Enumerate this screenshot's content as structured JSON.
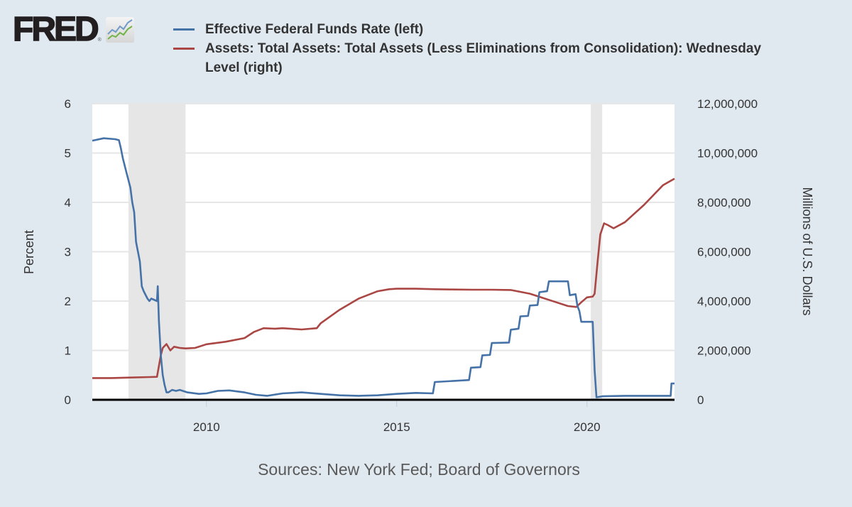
{
  "branding": {
    "logo_text": "FRED",
    "logo_registered": "®",
    "logo_icon": "line-chart-icon"
  },
  "source_note": "Sources: New York Fed; Board of Governors",
  "chart_data": {
    "type": "line",
    "title": "",
    "legend_position": "top",
    "grid": true,
    "xlabel": "",
    "x_range": [
      2007.0,
      2022.3
    ],
    "x_ticks": [
      2010,
      2015,
      2020
    ],
    "x_tick_labels": [
      "2010",
      "2015",
      "2020"
    ],
    "left_axis": {
      "label": "Percent",
      "range": [
        0,
        6
      ],
      "ticks": [
        0,
        1,
        2,
        3,
        4,
        5,
        6
      ],
      "tick_labels": [
        "0",
        "1",
        "2",
        "3",
        "4",
        "5",
        "6"
      ]
    },
    "right_axis": {
      "label": "Millions of U.S. Dollars",
      "range": [
        0,
        12000000
      ],
      "ticks": [
        0,
        2000000,
        4000000,
        6000000,
        8000000,
        10000000,
        12000000
      ],
      "tick_labels": [
        "0",
        "2,000,000",
        "4,000,000",
        "6,000,000",
        "8,000,000",
        "10,000,000",
        "12,000,000"
      ]
    },
    "recessions": [
      {
        "start": 2007.95,
        "end": 2009.45
      },
      {
        "start": 2020.1,
        "end": 2020.4
      }
    ],
    "series": [
      {
        "name": "Effective Federal Funds Rate (left)",
        "axis": "left",
        "color": "#4572a7",
        "x": [
          2007.0,
          2007.3,
          2007.6,
          2007.7,
          2007.75,
          2007.8,
          2007.9,
          2008.0,
          2008.05,
          2008.1,
          2008.15,
          2008.2,
          2008.25,
          2008.3,
          2008.35,
          2008.45,
          2008.5,
          2008.55,
          2008.7,
          2008.72,
          2008.75,
          2008.8,
          2008.85,
          2008.9,
          2008.95,
          2009.0,
          2009.1,
          2009.2,
          2009.3,
          2009.5,
          2009.8,
          2010.0,
          2010.3,
          2010.6,
          2011.0,
          2011.3,
          2011.6,
          2012.0,
          2012.5,
          2013.0,
          2013.5,
          2014.0,
          2014.5,
          2015.0,
          2015.5,
          2015.95,
          2016.0,
          2016.9,
          2016.95,
          2017.2,
          2017.25,
          2017.45,
          2017.5,
          2017.95,
          2018.0,
          2018.2,
          2018.25,
          2018.45,
          2018.5,
          2018.7,
          2018.75,
          2018.95,
          2019.0,
          2019.3,
          2019.5,
          2019.55,
          2019.7,
          2019.75,
          2019.8,
          2019.85,
          2020.15,
          2020.2,
          2020.25,
          2020.4,
          2021.0,
          2021.5,
          2022.0,
          2022.2,
          2022.22,
          2022.3
        ],
        "values": [
          5.25,
          5.3,
          5.28,
          5.26,
          5.1,
          4.9,
          4.6,
          4.3,
          4.0,
          3.8,
          3.2,
          3.0,
          2.8,
          2.3,
          2.2,
          2.05,
          2.0,
          2.05,
          2.0,
          2.3,
          1.6,
          0.9,
          0.5,
          0.3,
          0.15,
          0.15,
          0.2,
          0.18,
          0.2,
          0.15,
          0.12,
          0.13,
          0.18,
          0.19,
          0.15,
          0.1,
          0.08,
          0.13,
          0.15,
          0.12,
          0.09,
          0.08,
          0.09,
          0.12,
          0.14,
          0.13,
          0.36,
          0.4,
          0.65,
          0.66,
          0.9,
          0.91,
          1.15,
          1.16,
          1.42,
          1.44,
          1.69,
          1.7,
          1.91,
          1.92,
          2.18,
          2.2,
          2.4,
          2.4,
          2.4,
          2.12,
          2.14,
          1.9,
          1.8,
          1.58,
          1.58,
          0.6,
          0.05,
          0.07,
          0.08,
          0.08,
          0.08,
          0.08,
          0.33,
          0.33
        ]
      },
      {
        "name": "Assets: Total Assets: Total Assets (Less Eliminations from Consolidation): Wednesday Level (right)",
        "axis": "right",
        "color": "#aa4643",
        "x": [
          2007.0,
          2007.5,
          2008.0,
          2008.5,
          2008.7,
          2008.8,
          2008.85,
          2008.95,
          2009.05,
          2009.15,
          2009.3,
          2009.45,
          2009.7,
          2010.0,
          2010.5,
          2011.0,
          2011.25,
          2011.5,
          2011.8,
          2012.0,
          2012.5,
          2012.9,
          2013.0,
          2013.5,
          2014.0,
          2014.5,
          2014.8,
          2015.0,
          2015.5,
          2016.0,
          2016.5,
          2017.0,
          2017.5,
          2018.0,
          2018.5,
          2019.0,
          2019.5,
          2019.72,
          2019.85,
          2020.0,
          2020.15,
          2020.2,
          2020.28,
          2020.35,
          2020.45,
          2020.55,
          2020.7,
          2021.0,
          2021.5,
          2022.0,
          2022.3
        ],
        "values": [
          880000,
          880000,
          900000,
          920000,
          930000,
          1800000,
          2100000,
          2260000,
          2000000,
          2150000,
          2100000,
          2080000,
          2100000,
          2250000,
          2350000,
          2500000,
          2750000,
          2900000,
          2880000,
          2900000,
          2850000,
          2900000,
          3100000,
          3650000,
          4100000,
          4400000,
          4480000,
          4500000,
          4500000,
          4480000,
          4470000,
          4460000,
          4460000,
          4450000,
          4300000,
          4050000,
          3800000,
          3760000,
          3950000,
          4150000,
          4180000,
          4300000,
          5600000,
          6700000,
          7150000,
          7080000,
          6950000,
          7200000,
          7900000,
          8700000,
          8960000
        ]
      }
    ]
  }
}
